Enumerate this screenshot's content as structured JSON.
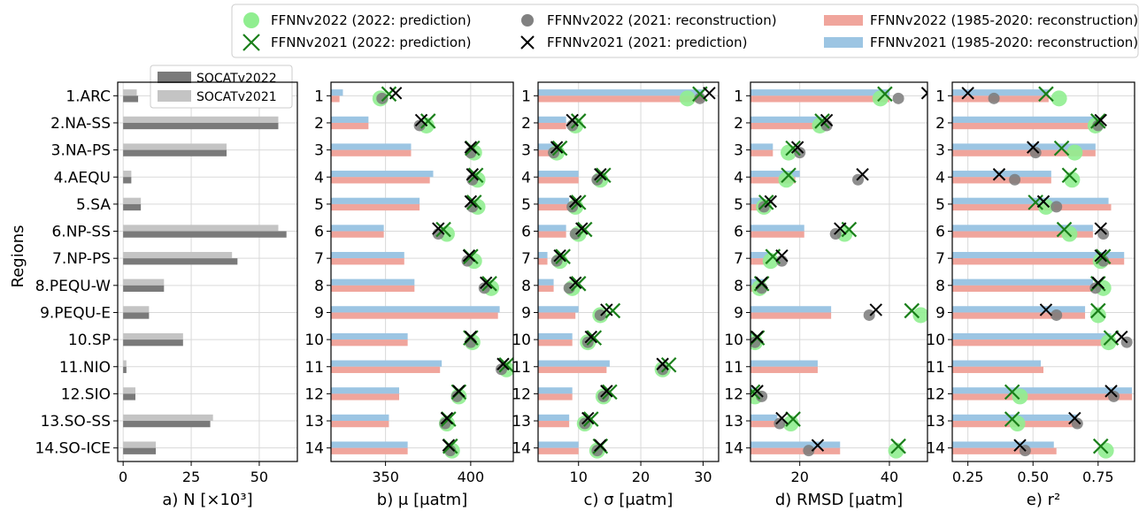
{
  "legend": [
    {
      "label": "FFNNv2022 (2022: prediction)",
      "marker": "circle",
      "color": "#90ee90"
    },
    {
      "label": "FFNNv2021 (2022: prediction)",
      "marker": "x",
      "color": "#1a7f1a"
    },
    {
      "label": "FFNNv2022 (2021: reconstruction)",
      "marker": "circle",
      "color": "#7a7a7a"
    },
    {
      "label": "FFNNv2021 (2021: prediction)",
      "marker": "x",
      "color": "#000000"
    },
    {
      "label": "FFNNv2022 (1985-2020: reconstruction)",
      "marker": "bar",
      "color": "#f0a59c"
    },
    {
      "label": "FFNNv2021 (1985-2020: reconstruction)",
      "marker": "bar",
      "color": "#9cc5e3"
    }
  ],
  "colors": {
    "v2022_recon_bar": "#f0a59c",
    "v2021_recon_bar": "#9cc5e3",
    "socat2022_bar": "#7a7a7a",
    "socat2021_bar": "#c4c4c4",
    "pred2022_circle": "#90ee90",
    "pred2021_x": "#1a7f1a",
    "recon2021_circle": "#7a7a7a",
    "pred2021_black_x": "#000000"
  },
  "ylabel": "Regions",
  "chart_data": [
    {
      "type": "bar",
      "orientation": "horizontal",
      "xlabel": "a) N [×10³]",
      "xlim": [
        -2,
        64
      ],
      "xticks": [
        0,
        25,
        50
      ],
      "grid": true,
      "categories": [
        "1.ARC",
        "2.NA-SS",
        "3.NA-PS",
        "4.AEQU",
        "5.SA",
        "6.NP-SS",
        "7.NP-PS",
        "8.PEQU-W",
        "9.PEQU-E",
        "10.SP",
        "11.NIO",
        "12.SIO",
        "13.SO-SS",
        "14.SO-ICE"
      ],
      "legend": [
        "SOCATv2022",
        "SOCATv2021"
      ],
      "legend_position": "top-right",
      "series": [
        {
          "name": "SOCATv2022",
          "values": [
            5.5,
            57,
            38,
            3,
            6.5,
            60,
            42,
            15,
            9.5,
            22,
            1.2,
            4.5,
            32,
            12
          ]
        },
        {
          "name": "SOCATv2021",
          "values": [
            5,
            57,
            38,
            3,
            6.5,
            57,
            40,
            15,
            9.5,
            22,
            1.2,
            4.5,
            33,
            12
          ]
        }
      ]
    },
    {
      "type": "bar",
      "orientation": "horizontal",
      "xlabel": "b) μ [μatm]",
      "xlim": [
        318,
        425
      ],
      "xticks": [
        350,
        400
      ],
      "grid": true,
      "categories": [
        "1",
        "2",
        "3",
        "4",
        "5",
        "6",
        "7",
        "8",
        "9",
        "10",
        "11",
        "12",
        "13",
        "14"
      ],
      "series": [
        {
          "name": "FFNNv2022 (1985-2020: reconstruction)",
          "values": [
            323,
            340,
            365,
            376,
            370,
            349,
            361,
            367,
            416,
            363,
            382,
            358,
            352,
            363
          ]
        },
        {
          "name": "FFNNv2021 (1985-2020: reconstruction)",
          "values": [
            325,
            340,
            365,
            378,
            370,
            349,
            361,
            367,
            417,
            363,
            383,
            358,
            352,
            363
          ]
        },
        {
          "name": "FFNNv2022 (2022: prediction)",
          "values": [
            347,
            374,
            402,
            404,
            404,
            386,
            402,
            412,
            null,
            401,
            421,
            393,
            386,
            389
          ]
        },
        {
          "name": "FFNNv2021 (2022: prediction)",
          "values": [
            352,
            375,
            401,
            403,
            402,
            384,
            400,
            411,
            null,
            400,
            421,
            393,
            387,
            388
          ]
        },
        {
          "name": "FFNNv2022 (2021: reconstruction)",
          "values": [
            348,
            370,
            400,
            401,
            401,
            381,
            398,
            408,
            null,
            400,
            418,
            392,
            385,
            388
          ]
        },
        {
          "name": "FFNNv2021 (2021: prediction)",
          "values": [
            356,
            371,
            400,
            401,
            400,
            381,
            399,
            409,
            null,
            400,
            419,
            393,
            386,
            387
          ]
        }
      ]
    },
    {
      "type": "bar",
      "orientation": "horizontal",
      "xlabel": "c) σ [μatm]",
      "xlim": [
        3.5,
        32.5
      ],
      "xticks": [
        10,
        20,
        30
      ],
      "grid": true,
      "categories": [
        "1",
        "2",
        "3",
        "4",
        "5",
        "6",
        "7",
        "8",
        "9",
        "10",
        "11",
        "12",
        "13",
        "14"
      ],
      "series": [
        {
          "name": "FFNNv2022 (1985-2020: reconstruction)",
          "values": [
            30,
            8,
            6,
            10,
            9,
            8,
            5,
            6,
            9.5,
            9,
            14.5,
            9,
            8.5,
            10
          ]
        },
        {
          "name": "FFNNv2021 (1985-2020: reconstruction)",
          "values": [
            30,
            8,
            6,
            10,
            8.5,
            8,
            5,
            6,
            10,
            9,
            15,
            9,
            8.5,
            10
          ]
        },
        {
          "name": "FFNNv2022 (2022: prediction)",
          "values": [
            27.5,
            9.5,
            6.5,
            13.5,
            9.5,
            10,
            7,
            9,
            13.5,
            11.5,
            23.5,
            14,
            11,
            13
          ]
        },
        {
          "name": "FFNNv2021 (2022: prediction)",
          "values": [
            29.5,
            10,
            7,
            14,
            10,
            11,
            7.5,
            10,
            15.5,
            12.5,
            24.5,
            15,
            12,
            13.5
          ]
        },
        {
          "name": "FFNNv2022 (2021: reconstruction)",
          "values": [
            29.5,
            9,
            6,
            13,
            9,
            9.5,
            6.5,
            8.5,
            13.5,
            11.5,
            23.5,
            14,
            11,
            13
          ]
        },
        {
          "name": "FFNNv2021 (2021: prediction)",
          "values": [
            31,
            9,
            6.5,
            13.5,
            9.5,
            10.5,
            7,
            9.5,
            14.5,
            12,
            23.5,
            14.5,
            11.5,
            13.5
          ]
        }
      ]
    },
    {
      "type": "bar",
      "orientation": "horizontal",
      "xlabel": "d) RMSD [μatm]",
      "xlim": [
        9,
        48.5
      ],
      "xticks": [
        20,
        40
      ],
      "grid": true,
      "categories": [
        "1",
        "2",
        "3",
        "4",
        "5",
        "6",
        "7",
        "8",
        "9",
        "10",
        "11",
        "12",
        "13",
        "14"
      ],
      "series": [
        {
          "name": "FFNNv2022 (1985-2020: reconstruction)",
          "values": [
            40,
            24,
            14,
            19,
            12,
            21,
            13,
            12,
            27,
            10,
            24,
            10,
            15,
            29
          ]
        },
        {
          "name": "FFNNv2021 (1985-2020: reconstruction)",
          "values": [
            40,
            25,
            14,
            20,
            12,
            21,
            13,
            12,
            27,
            10,
            24,
            10,
            15,
            29
          ]
        },
        {
          "name": "FFNNv2022 (2022: prediction)",
          "values": [
            38,
            24.5,
            17.5,
            17,
            12,
            30,
            13.5,
            11,
            47,
            10,
            null,
            10,
            18,
            41.5
          ]
        },
        {
          "name": "FFNNv2021 (2022: prediction)",
          "values": [
            39,
            25,
            18.5,
            17.5,
            12.5,
            31,
            14,
            11.5,
            45,
            10.5,
            null,
            9.5,
            18.5,
            42
          ]
        },
        {
          "name": "FFNNv2022 (2021: reconstruction)",
          "values": [
            42,
            26,
            20,
            33,
            12,
            28,
            16,
            11.5,
            35.5,
            10,
            null,
            11.5,
            15.5,
            22
          ]
        },
        {
          "name": "FFNNv2021 (2021: prediction)",
          "values": [
            48.5,
            26,
            19.5,
            34,
            13.5,
            29,
            16,
            11.5,
            37,
            10.5,
            null,
            10.5,
            16,
            24
          ]
        }
      ]
    },
    {
      "type": "bar",
      "orientation": "horizontal",
      "xlabel": "e) r²",
      "xlim": [
        0.19,
        0.89
      ],
      "xticks": [
        0.25,
        0.5,
        0.75
      ],
      "tick_labels": [
        "0.25",
        "0.50",
        "0.75"
      ],
      "grid": true,
      "categories": [
        "1",
        "2",
        "3",
        "4",
        "5",
        "6",
        "7",
        "8",
        "9",
        "10",
        "11",
        "12",
        "13",
        "14"
      ],
      "series": [
        {
          "name": "FFNNv2022 (1985-2020: reconstruction)",
          "values": [
            0.56,
            0.75,
            0.74,
            0.57,
            0.8,
            0.73,
            0.85,
            0.73,
            0.7,
            0.8,
            0.54,
            0.88,
            0.68,
            0.59
          ]
        },
        {
          "name": "FFNNv2021 (1985-2020: reconstruction)",
          "values": [
            0.56,
            0.75,
            0.74,
            0.57,
            0.79,
            0.73,
            0.85,
            0.73,
            0.7,
            0.8,
            0.53,
            0.88,
            0.67,
            0.58
          ]
        },
        {
          "name": "FFNNv2022 (2022: prediction)",
          "values": [
            0.6,
            0.74,
            0.66,
            0.65,
            0.55,
            0.64,
            0.76,
            0.77,
            0.75,
            0.79,
            null,
            0.45,
            0.44,
            0.78
          ]
        },
        {
          "name": "FFNNv2021 (2022: prediction)",
          "values": [
            0.55,
            0.75,
            0.61,
            0.64,
            0.51,
            0.62,
            0.77,
            0.75,
            0.75,
            0.8,
            null,
            0.42,
            0.42,
            0.76
          ]
        },
        {
          "name": "FFNNv2022 (2021: reconstruction)",
          "values": [
            0.35,
            0.75,
            0.51,
            0.43,
            0.59,
            0.77,
            0.77,
            0.74,
            0.59,
            0.86,
            null,
            0.81,
            0.67,
            0.47
          ]
        },
        {
          "name": "FFNNv2021 (2021: prediction)",
          "values": [
            0.25,
            0.76,
            0.5,
            0.37,
            0.54,
            0.76,
            0.76,
            0.75,
            0.55,
            0.84,
            null,
            0.8,
            0.66,
            0.45
          ]
        }
      ]
    }
  ]
}
